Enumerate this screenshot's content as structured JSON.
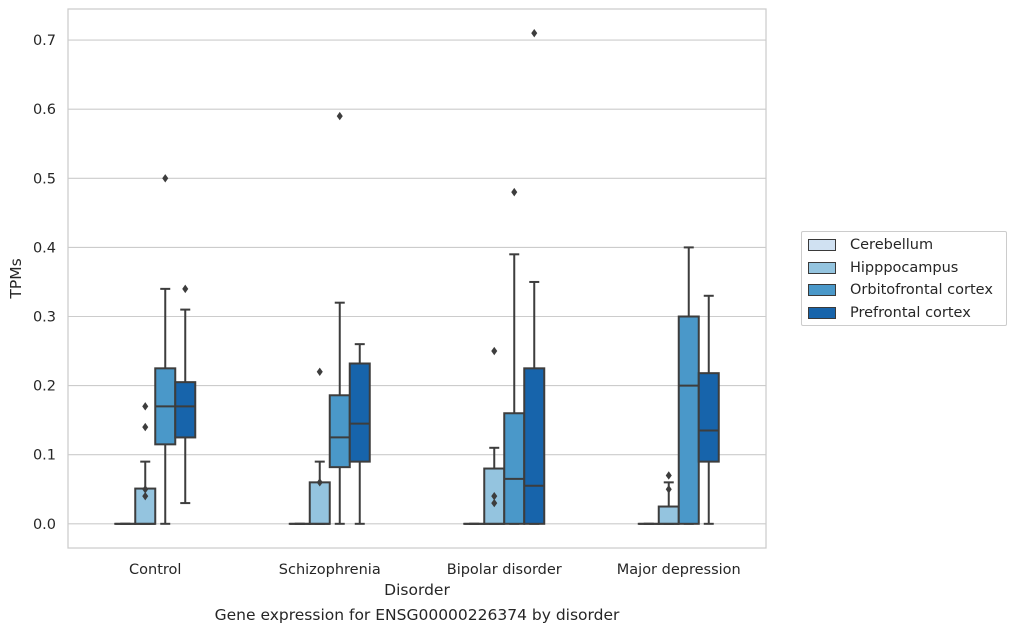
{
  "chart_data": {
    "type": "boxplot",
    "xlabel": "Disorder",
    "ylabel": "TPMs",
    "caption": "Gene expression for ENSG00000226374 by disorder",
    "categories": [
      "Control",
      "Schizophrenia",
      "Bipolar disorder",
      "Major depression"
    ],
    "ylim": [
      -0.035,
      0.745
    ],
    "yticks": [
      0.0,
      0.1,
      0.2,
      0.3,
      0.4,
      0.5,
      0.6,
      0.7
    ],
    "ytick_labels": [
      "0.0",
      "0.1",
      "0.2",
      "0.3",
      "0.4",
      "0.5",
      "0.6",
      "0.7"
    ],
    "grid": true,
    "legend_position": "right",
    "series": [
      {
        "name": "Cerebellum",
        "color": "#d0e1f2",
        "boxes": [
          {
            "whislo": 0.0,
            "q1": 0.0,
            "med": 0.0,
            "q3": 0.0,
            "whishi": 0.0,
            "fliers": []
          },
          {
            "whislo": 0.0,
            "q1": 0.0,
            "med": 0.0,
            "q3": 0.0,
            "whishi": 0.0,
            "fliers": []
          },
          {
            "whislo": 0.0,
            "q1": 0.0,
            "med": 0.0,
            "q3": 0.0,
            "whishi": 0.0,
            "fliers": []
          },
          {
            "whislo": 0.0,
            "q1": 0.0,
            "med": 0.0,
            "q3": 0.0,
            "whishi": 0.0,
            "fliers": []
          }
        ]
      },
      {
        "name": "Hipppocampus",
        "color": "#94c4df",
        "boxes": [
          {
            "whislo": 0.0,
            "q1": 0.0,
            "med": 0.0,
            "q3": 0.051,
            "whishi": 0.09,
            "fliers": [
              0.04,
              0.05,
              0.14,
              0.17
            ]
          },
          {
            "whislo": 0.0,
            "q1": 0.0,
            "med": 0.0,
            "q3": 0.06,
            "whishi": 0.09,
            "fliers": [
              0.06,
              0.22
            ]
          },
          {
            "whislo": 0.0,
            "q1": 0.0,
            "med": 0.0,
            "q3": 0.08,
            "whishi": 0.11,
            "fliers": [
              0.03,
              0.04,
              0.25
            ]
          },
          {
            "whislo": 0.0,
            "q1": 0.0,
            "med": 0.0,
            "q3": 0.025,
            "whishi": 0.06,
            "fliers": [
              0.05,
              0.07
            ]
          }
        ]
      },
      {
        "name": "Orbitofrontal cortex",
        "color": "#4a98c9",
        "boxes": [
          {
            "whislo": 0.0,
            "q1": 0.115,
            "med": 0.17,
            "q3": 0.225,
            "whishi": 0.34,
            "fliers": [
              0.5
            ]
          },
          {
            "whislo": 0.0,
            "q1": 0.082,
            "med": 0.125,
            "q3": 0.186,
            "whishi": 0.32,
            "fliers": [
              0.59
            ]
          },
          {
            "whislo": 0.0,
            "q1": 0.0,
            "med": 0.065,
            "q3": 0.16,
            "whishi": 0.39,
            "fliers": [
              0.48
            ]
          },
          {
            "whislo": 0.0,
            "q1": 0.0,
            "med": 0.2,
            "q3": 0.3,
            "whishi": 0.4,
            "fliers": []
          }
        ]
      },
      {
        "name": "Prefrontal cortex",
        "color": "#1764ab",
        "boxes": [
          {
            "whislo": 0.03,
            "q1": 0.125,
            "med": 0.17,
            "q3": 0.205,
            "whishi": 0.31,
            "fliers": [
              0.34
            ]
          },
          {
            "whislo": 0.0,
            "q1": 0.09,
            "med": 0.145,
            "q3": 0.232,
            "whishi": 0.26,
            "fliers": []
          },
          {
            "whislo": 0.0,
            "q1": 0.0,
            "med": 0.055,
            "q3": 0.225,
            "whishi": 0.35,
            "fliers": [
              0.71
            ]
          },
          {
            "whislo": 0.0,
            "q1": 0.09,
            "med": 0.135,
            "q3": 0.218,
            "whishi": 0.33,
            "fliers": []
          }
        ]
      }
    ]
  }
}
